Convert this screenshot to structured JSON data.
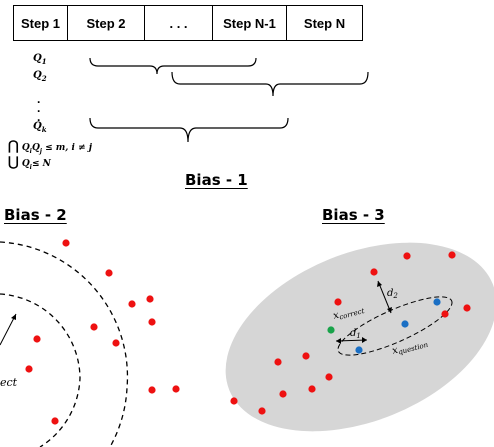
{
  "steps": {
    "labels": [
      "Step 1",
      "Step 2",
      ". . .",
      "Step N-1",
      "Step N"
    ]
  },
  "bias1": {
    "title": "Bias - 1",
    "q_symbol": "Q",
    "q_subscripts": [
      "1",
      "2",
      "k"
    ],
    "constraint_intersection": {
      "op": "⋂",
      "expr": "Q",
      "sub_i": "i",
      "sub_j": "j",
      "rhs": " ≤ m, i ≠ j"
    },
    "constraint_union": {
      "op": "⋃",
      "expr": "Q",
      "sub_i": "i",
      "rhs": "≤ N"
    }
  },
  "bias2": {
    "title": "Bias -  2",
    "partial_label": "ect"
  },
  "bias3": {
    "title": "Bias - 3",
    "label_correct": {
      "base": "x",
      "sub": "correct"
    },
    "label_question": {
      "base": "x",
      "sub": "question"
    },
    "label_d1": {
      "base": "d",
      "sub": "1"
    },
    "label_d2": {
      "base": "d",
      "sub": "2"
    }
  },
  "colors": {
    "point_red": "#ee1111",
    "point_blue": "#1a6fc4",
    "point_green": "#19a34a",
    "ellipse_fill": "#d6d6d6"
  }
}
